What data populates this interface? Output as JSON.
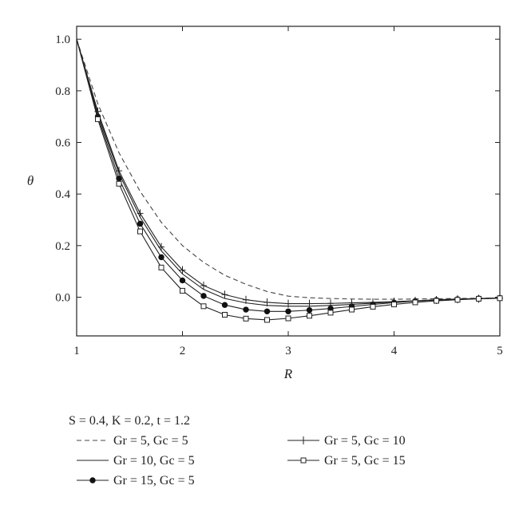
{
  "chart_data": {
    "type": "line",
    "xlabel": "R",
    "ylabel": "θ",
    "xlim": [
      1,
      5
    ],
    "ylim": [
      -0.15,
      1.05
    ],
    "xticks": [
      1,
      2,
      3,
      4,
      5
    ],
    "yticks": [
      0.0,
      0.2,
      0.4,
      0.6,
      0.8,
      1.0
    ],
    "xtick_labels": [
      "1",
      "2",
      "3",
      "4",
      "5"
    ],
    "ytick_labels": [
      "0.0",
      "0.2",
      "0.4",
      "0.6",
      "0.8",
      "1.0"
    ],
    "grid": false,
    "legend_position": "bottom",
    "legend_title": "S = 0.4, K = 0.2, t = 1.2",
    "x": [
      1.0,
      1.2,
      1.4,
      1.6,
      1.8,
      2.0,
      2.2,
      2.4,
      2.6,
      2.8,
      3.0,
      3.2,
      3.4,
      3.6,
      3.8,
      4.0,
      4.2,
      4.4,
      4.6,
      4.8,
      5.0
    ],
    "series": [
      {
        "name": "Gr = 5, Gc = 5",
        "style": "dashed",
        "color": "#444444",
        "values": [
          1.0,
          0.75,
          0.56,
          0.41,
          0.29,
          0.2,
          0.135,
          0.085,
          0.05,
          0.022,
          0.004,
          -0.002,
          -0.005,
          -0.007,
          -0.008,
          -0.008,
          -0.007,
          -0.006,
          -0.005,
          -0.004,
          -0.003
        ]
      },
      {
        "name": "Gr = 10, Gc = 5",
        "style": "solid",
        "color": "#222222",
        "values": [
          1.0,
          0.71,
          0.48,
          0.31,
          0.18,
          0.09,
          0.03,
          -0.005,
          -0.022,
          -0.032,
          -0.035,
          -0.035,
          -0.032,
          -0.028,
          -0.023,
          -0.018,
          -0.014,
          -0.01,
          -0.007,
          -0.005,
          -0.003
        ]
      },
      {
        "name": "Gr = 15, Gc = 5",
        "style": "solid",
        "marker": "filled-circle",
        "color": "#222222",
        "values": [
          1.0,
          0.7,
          0.46,
          0.285,
          0.155,
          0.065,
          0.005,
          -0.03,
          -0.048,
          -0.055,
          -0.055,
          -0.05,
          -0.044,
          -0.036,
          -0.028,
          -0.021,
          -0.015,
          -0.011,
          -0.008,
          -0.005,
          -0.003
        ]
      },
      {
        "name": "Gr = 5, Gc = 10",
        "style": "solid",
        "marker": "plus",
        "color": "#222222",
        "values": [
          1.0,
          0.72,
          0.49,
          0.325,
          0.195,
          0.105,
          0.045,
          0.01,
          -0.01,
          -0.02,
          -0.025,
          -0.025,
          -0.024,
          -0.022,
          -0.02,
          -0.017,
          -0.014,
          -0.011,
          -0.008,
          -0.006,
          -0.004
        ]
      },
      {
        "name": "Gr = 5, Gc = 15",
        "style": "solid",
        "marker": "open-square",
        "color": "#222222",
        "values": [
          1.0,
          0.69,
          0.44,
          0.255,
          0.115,
          0.025,
          -0.035,
          -0.068,
          -0.083,
          -0.088,
          -0.082,
          -0.072,
          -0.06,
          -0.048,
          -0.037,
          -0.028,
          -0.02,
          -0.014,
          -0.01,
          -0.006,
          -0.004
        ]
      }
    ]
  }
}
